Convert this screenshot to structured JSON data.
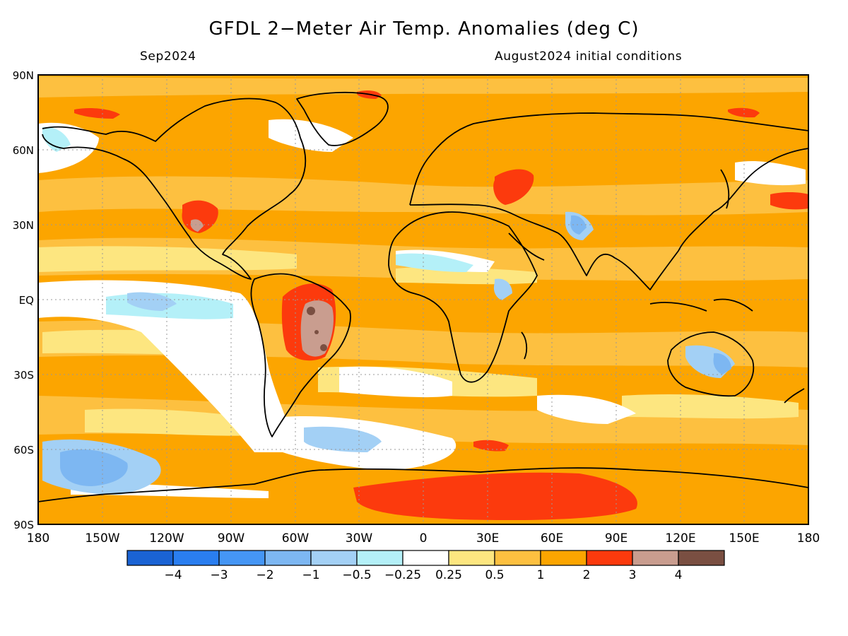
{
  "title": "GFDL 2−Meter Air Temp. Anomalies (deg C)",
  "valid_month": "Sep2024",
  "init_label": "August2024 initial conditions",
  "lat_labels": [
    "90N",
    "60N",
    "30N",
    "EQ",
    "30S",
    "60S",
    "90S"
  ],
  "lon_labels": [
    "180",
    "150W",
    "120W",
    "90W",
    "60W",
    "30W",
    "0",
    "30E",
    "60E",
    "90E",
    "120E",
    "150E",
    "180"
  ],
  "colorbar": {
    "colors": [
      "#1a63d4",
      "#2a7ef0",
      "#4596f5",
      "#7db7f2",
      "#a3d0f5",
      "#b4f0f8",
      "#ffffff",
      "#fde680",
      "#fdc040",
      "#fca500",
      "#fc3a0d",
      "#c99d8f",
      "#7a4f42"
    ],
    "labels": [
      "−4",
      "−3",
      "−2",
      "−1",
      "−0.5",
      "−0.25",
      "0.25",
      "0.5",
      "1",
      "2",
      "3",
      "4"
    ]
  },
  "map": {
    "background_color": "#fca500",
    "regions": [
      {
        "name": "south-pacific-cold-patch",
        "category": "-1"
      },
      {
        "name": "antarctica-warm-patch",
        "category": "3"
      },
      {
        "name": "brazil-hot-patch",
        "category": "4"
      },
      {
        "name": "tropical-pacific-cool-band",
        "category": "-0.5"
      }
    ]
  }
}
